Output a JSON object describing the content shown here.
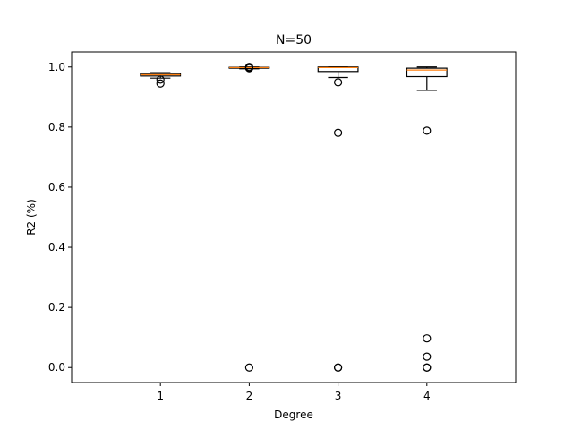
{
  "chart_data": {
    "type": "box",
    "title": "N=50",
    "xlabel": "Degree",
    "ylabel": "R2 (%)",
    "categories": [
      "1",
      "2",
      "3",
      "4"
    ],
    "ylim": [
      -0.05,
      1.05
    ],
    "yticks": [
      "0.0",
      "0.2",
      "0.4",
      "0.6",
      "0.8",
      "1.0"
    ],
    "grid": false,
    "colors": {
      "box": "#000000",
      "median": "#ff7f0e",
      "flier": "#000000"
    },
    "boxes": [
      {
        "category": "1",
        "whisker_low": 0.963,
        "q1": 0.97,
        "median": 0.974,
        "q3": 0.978,
        "whisker_high": 0.981,
        "outliers": [
          0.945,
          0.958
        ]
      },
      {
        "category": "2",
        "whisker_low": 0.994,
        "q1": 0.996,
        "median": 0.998,
        "q3": 0.999,
        "whisker_high": 1.0,
        "outliers": [
          0.0,
          0.996,
          0.998,
          1.0
        ]
      },
      {
        "category": "3",
        "whisker_low": 0.965,
        "q1": 0.985,
        "median": 0.998,
        "q3": 1.0,
        "whisker_high": 1.0,
        "outliers": [
          0.781,
          0.949,
          0.0,
          0.0
        ]
      },
      {
        "category": "4",
        "whisker_low": 0.922,
        "q1": 0.968,
        "median": 0.99,
        "q3": 0.996,
        "whisker_high": 1.0,
        "outliers": [
          0.788,
          0.097,
          0.036,
          0.0,
          0.0
        ]
      }
    ]
  }
}
